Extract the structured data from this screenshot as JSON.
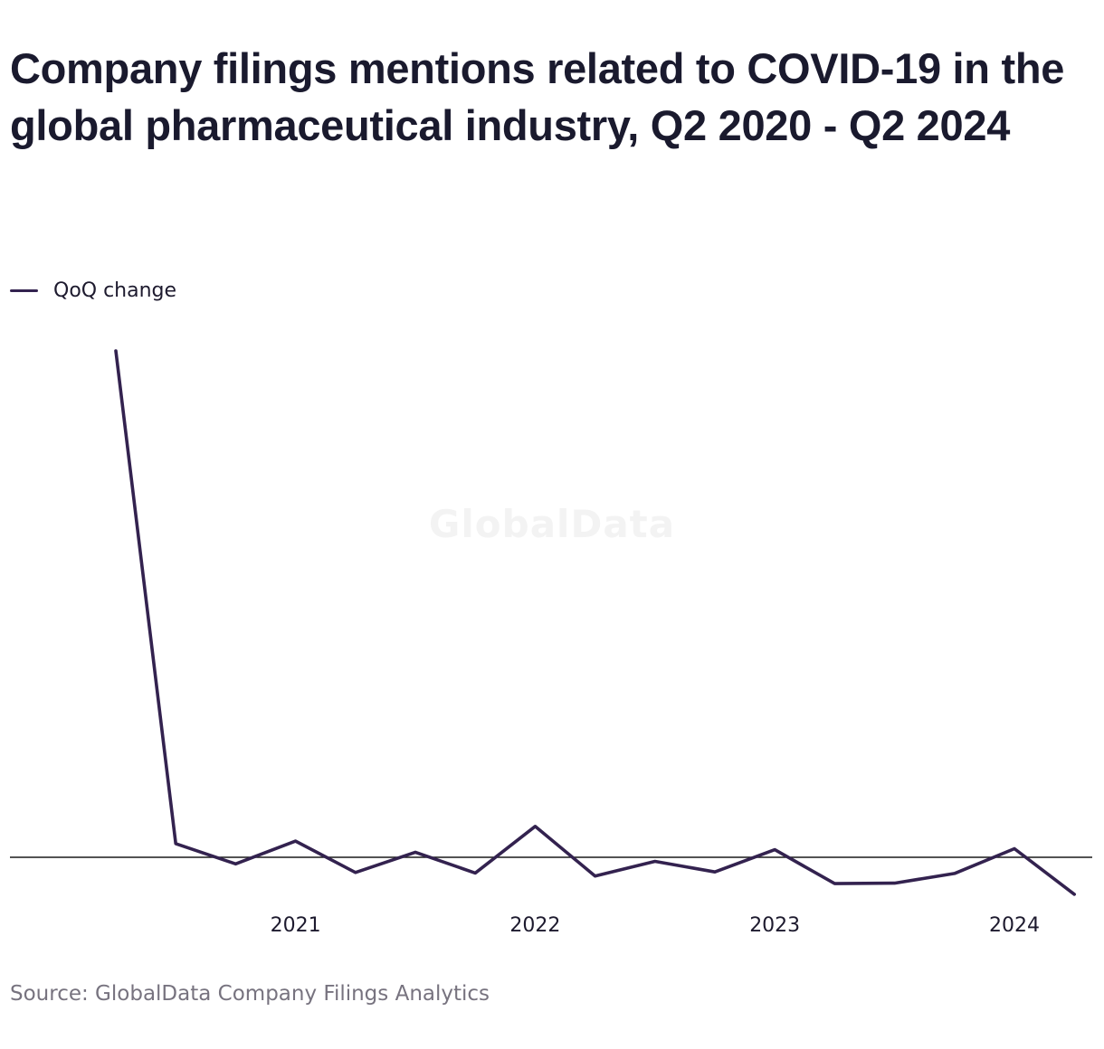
{
  "title": "Company filings mentions related to COVID-19 in the global pharmaceutical industry, Q2 2020 - Q2 2024",
  "legend": {
    "label": "QoQ change",
    "color": "#33224f"
  },
  "watermark": "GlobalData",
  "source": "Source: GlobalData Company Filings Analytics",
  "chart_data": {
    "type": "line",
    "title": "Company filings mentions related to COVID-19 in the global pharmaceutical industry, Q2 2020 - Q2 2024",
    "xlabel": "",
    "ylabel": "",
    "x": [
      "Q2 2020",
      "Q3 2020",
      "Q4 2020",
      "Q1 2021",
      "Q2 2021",
      "Q3 2021",
      "Q4 2021",
      "Q1 2022",
      "Q2 2022",
      "Q3 2022",
      "Q4 2022",
      "Q1 2023",
      "Q2 2023",
      "Q3 2023",
      "Q4 2023",
      "Q1 2024",
      "Q2 2024"
    ],
    "x_tick_labels": [
      {
        "at": "Q1 2021",
        "label": "2021"
      },
      {
        "at": "Q1 2022",
        "label": "2022"
      },
      {
        "at": "Q1 2023",
        "label": "2023"
      },
      {
        "at": "Q1 2024",
        "label": "2024"
      }
    ],
    "series": [
      {
        "name": "QoQ change",
        "color": "#33224f",
        "values": [
          1000,
          27,
          -13,
          32,
          -30,
          10,
          -31,
          61,
          -37,
          -8,
          -29,
          15,
          -52,
          -51,
          -32,
          17,
          -73
        ]
      }
    ],
    "ylim": [
      -95,
      1000
    ],
    "zero_line": true,
    "grid": false,
    "y_axis_labels": false,
    "legend_position": "top-left"
  }
}
